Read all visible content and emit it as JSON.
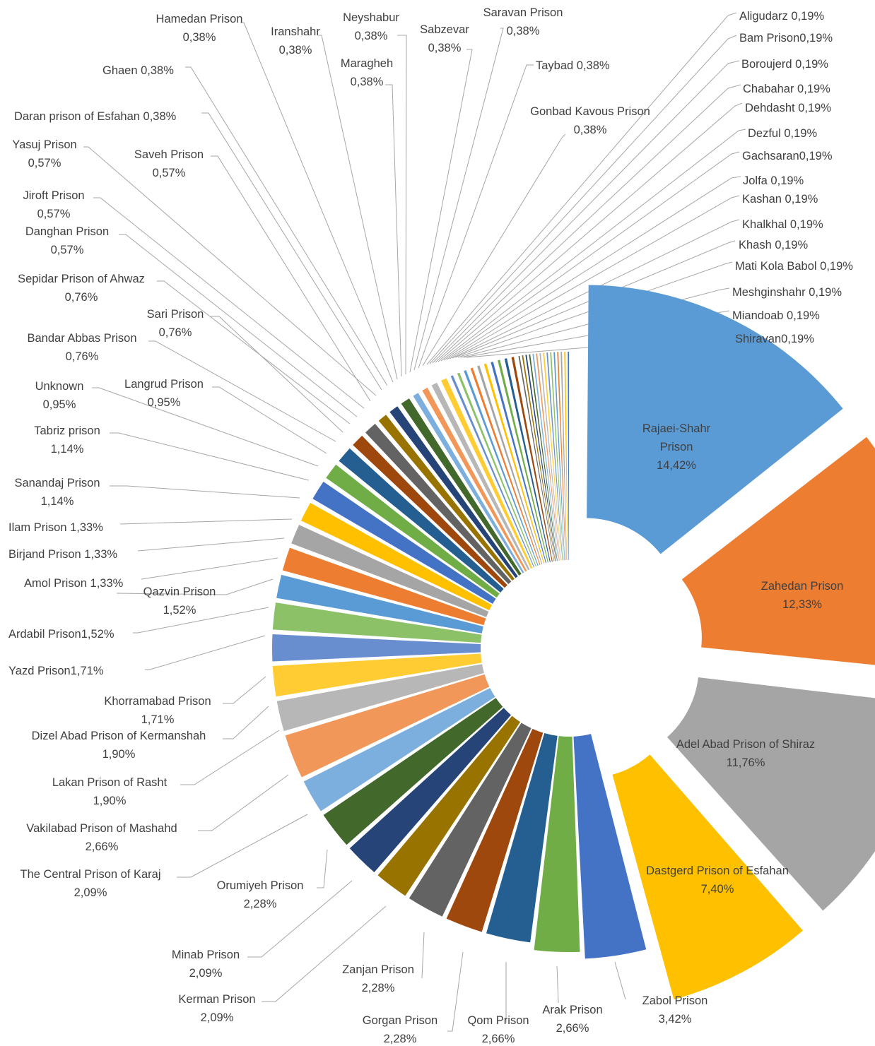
{
  "chart_data": {
    "type": "pie",
    "title": "",
    "colors": [
      "#5b9bd5",
      "#ed7d31",
      "#a5a5a5",
      "#ffc000",
      "#4472c4",
      "#70ad47",
      "#255e91",
      "#9e480e",
      "#636363",
      "#997300",
      "#264478",
      "#43682b",
      "#7cafdd",
      "#f1975a",
      "#b7b7b7",
      "#ffcd33",
      "#698ed0",
      "#8cc168"
    ],
    "slices": [
      {
        "text": "Rajaei-Shahr Prison 14,42%",
        "value": 14.42
      },
      {
        "text": "Zahedan Prison 12,33%",
        "value": 12.33
      },
      {
        "text": "Adel Abad Prison of Shiraz 11,76%",
        "value": 11.76
      },
      {
        "text": "Dastgerd Prison of Esfahan 7,40%",
        "value": 7.4
      },
      {
        "text": "Zabol Prison 3,42%",
        "value": 3.42
      },
      {
        "text": "Arak Prison 2,66%",
        "value": 2.66
      },
      {
        "text": "Qom Prison 2,66%",
        "value": 2.66
      },
      {
        "text": "Gorgan Prison 2,28%",
        "value": 2.28
      },
      {
        "text": "Zanjan Prison 2,28%",
        "value": 2.28
      },
      {
        "text": "Kerman Prison 2,09%",
        "value": 2.09
      },
      {
        "text": "Minab Prison 2,09%",
        "value": 2.09
      },
      {
        "text": "Orumiyeh  Prison 2,28%",
        "value": 2.28
      },
      {
        "text": "The Central Prison of Karaj 2,09%",
        "value": 2.09
      },
      {
        "text": "Vakilabad Prison of Mashahd 2,66%",
        "value": 2.66
      },
      {
        "text": "Lakan Prison of Rasht 1,90%",
        "value": 1.9
      },
      {
        "text": "Dizel Abad Prison of Kermanshah 1,90%",
        "value": 1.9
      },
      {
        "text": "Khorramabad Prison 1,71%",
        "value": 1.71
      },
      {
        "text": "Yazd  Prison1,71%",
        "value": 1.71
      },
      {
        "text": "Ardabil Prison1,52%",
        "value": 1.52
      },
      {
        "text": "Qazvin Prison 1,52%",
        "value": 1.52
      },
      {
        "text": "Amol Prison 1,33%",
        "value": 1.33
      },
      {
        "text": "Birjand Prison 1,33%",
        "value": 1.33
      },
      {
        "text": "Ilam Prison 1,33%",
        "value": 1.33
      },
      {
        "text": "Sanandaj Prison 1,14%",
        "value": 1.14
      },
      {
        "text": "Tabriz prison 1,14%",
        "value": 1.14
      },
      {
        "text": "Unknown 0,95%",
        "value": 0.95
      },
      {
        "text": "Langrud Prison 0,95%",
        "value": 0.95
      },
      {
        "text": "Bandar Abbas Prison 0,76%",
        "value": 0.76
      },
      {
        "text": "Sari Prison 0,76%",
        "value": 0.76
      },
      {
        "text": "Sepidar Prison of Ahwaz 0,76%",
        "value": 0.76
      },
      {
        "text": "Danghan Prison 0,57%",
        "value": 0.57
      },
      {
        "text": "Jiroft Prison 0,57%",
        "value": 0.57
      },
      {
        "text": "Saveh Prison 0,57%",
        "value": 0.57
      },
      {
        "text": "Yasuj Prison 0,57%",
        "value": 0.57
      },
      {
        "text": "Daran prison of Esfahan 0,38%",
        "value": 0.38
      },
      {
        "text": "Ghaen 0,38%",
        "value": 0.38
      },
      {
        "text": "Hamedan Prison 0,38%",
        "value": 0.38
      },
      {
        "text": "Iranshahr 0,38%",
        "value": 0.38
      },
      {
        "text": "Maragheh 0,38%",
        "value": 0.38
      },
      {
        "text": "Neyshabur 0,38%",
        "value": 0.38
      },
      {
        "text": "Sabzevar 0,38%",
        "value": 0.38
      },
      {
        "text": "Saravan Prison 0,38%",
        "value": 0.38
      },
      {
        "text": "Taybad 0,38%",
        "value": 0.38
      },
      {
        "text": "Gonbad Kavous Prison 0,38%",
        "value": 0.38
      },
      {
        "text": "Aligudarz 0,19%",
        "value": 0.19
      },
      {
        "text": "Bam Prison0,19%",
        "value": 0.19
      },
      {
        "text": "Boroujerd 0,19%",
        "value": 0.19
      },
      {
        "text": "Chabahar 0,19%",
        "value": 0.19
      },
      {
        "text": "Dehdasht 0,19%",
        "value": 0.19
      },
      {
        "text": "Dezful 0,19%",
        "value": 0.19
      },
      {
        "text": "Gachsaran0,19%",
        "value": 0.19
      },
      {
        "text": "Jolfa 0,19%",
        "value": 0.19
      },
      {
        "text": "Kashan 0,19%",
        "value": 0.19
      },
      {
        "text": "Khalkhal 0,19%",
        "value": 0.19
      },
      {
        "text": "Khash 0,19%",
        "value": 0.19
      },
      {
        "text": "Mati Kola Babol 0,19%",
        "value": 0.19
      },
      {
        "text": "Meshginshahr 0,19%",
        "value": 0.19
      },
      {
        "text": "Miandoab 0,19%",
        "value": 0.19
      },
      {
        "text": "Shiravan0,19%",
        "value": 0.19
      }
    ]
  }
}
